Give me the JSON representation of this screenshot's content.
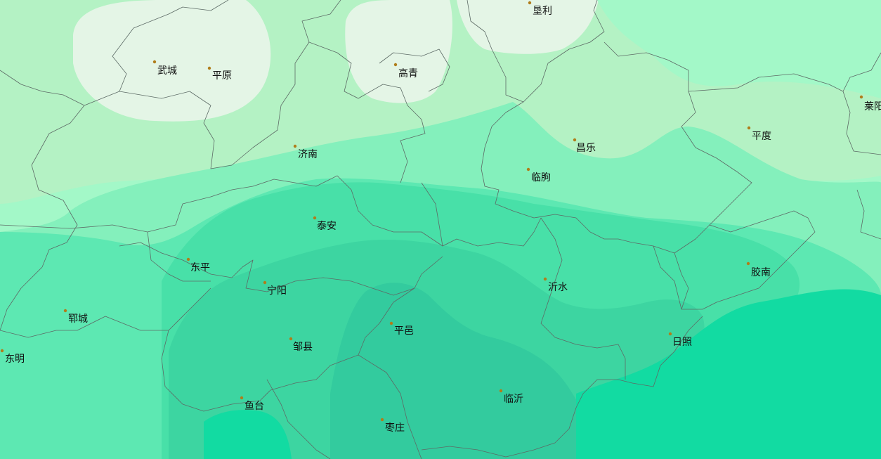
{
  "map": {
    "colors": {
      "level_1": "#e4f5e6",
      "level_2": "#b4f2c4",
      "level_3": "#a3f8c8",
      "level_4": "#84f0bc",
      "level_5": "#5de8b2",
      "level_6": "#48e0a8",
      "level_7": "#3dd5a1",
      "level_8": "#33cb9e",
      "level_9": "#12dba2",
      "city_dot": "#b07d1a",
      "boundary": "#5d6b66"
    },
    "cities": [
      {
        "name": "垦利"
      },
      {
        "name": "武城"
      },
      {
        "name": "平原"
      },
      {
        "name": "高青"
      },
      {
        "name": "莱阳"
      },
      {
        "name": "平度"
      },
      {
        "name": "昌乐"
      },
      {
        "name": "济南"
      },
      {
        "name": "临朐"
      },
      {
        "name": "泰安"
      },
      {
        "name": "东平"
      },
      {
        "name": "宁阳"
      },
      {
        "name": "沂水"
      },
      {
        "name": "胶南"
      },
      {
        "name": "郓城"
      },
      {
        "name": "平邑"
      },
      {
        "name": "邹县"
      },
      {
        "name": "东明"
      },
      {
        "name": "日照"
      },
      {
        "name": "临沂"
      },
      {
        "name": "鱼台"
      },
      {
        "name": "枣庄"
      }
    ]
  }
}
